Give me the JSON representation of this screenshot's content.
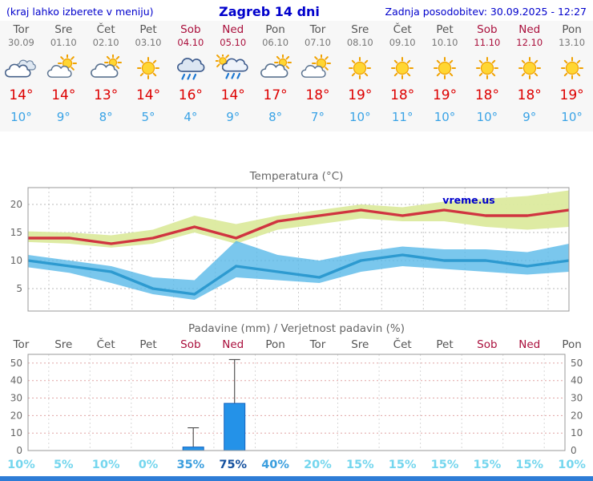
{
  "header": {
    "menu_hint": "(kraj lahko izberete v meniju)",
    "title": "Zagreb 14 dni",
    "updated": "Zadnja posodobitev: 30.09.2025 - 12:27"
  },
  "days": [
    {
      "name": "Tor",
      "date": "30.09",
      "weekend": false,
      "icon": "cloudy",
      "max": "14",
      "min": "10"
    },
    {
      "name": "Sre",
      "date": "01.10",
      "weekend": false,
      "icon": "partly-sunny",
      "max": "14",
      "min": "9"
    },
    {
      "name": "Čet",
      "date": "02.10",
      "weekend": false,
      "icon": "cloudy-sun",
      "max": "13",
      "min": "8"
    },
    {
      "name": "Pet",
      "date": "03.10",
      "weekend": false,
      "icon": "sunny",
      "max": "14",
      "min": "5"
    },
    {
      "name": "Sob",
      "date": "04.10",
      "weekend": true,
      "icon": "rain",
      "max": "16",
      "min": "4"
    },
    {
      "name": "Ned",
      "date": "05.10",
      "weekend": true,
      "icon": "sun-rain",
      "max": "14",
      "min": "9"
    },
    {
      "name": "Pon",
      "date": "06.10",
      "weekend": false,
      "icon": "cloudy-sun",
      "max": "17",
      "min": "8"
    },
    {
      "name": "Tor",
      "date": "07.10",
      "weekend": false,
      "icon": "partly-sunny",
      "max": "18",
      "min": "7"
    },
    {
      "name": "Sre",
      "date": "08.10",
      "weekend": false,
      "icon": "sunny",
      "max": "19",
      "min": "10"
    },
    {
      "name": "Čet",
      "date": "09.10",
      "weekend": false,
      "icon": "sunny",
      "max": "18",
      "min": "11"
    },
    {
      "name": "Pet",
      "date": "10.10",
      "weekend": false,
      "icon": "sunny",
      "max": "19",
      "min": "10"
    },
    {
      "name": "Sob",
      "date": "11.10",
      "weekend": true,
      "icon": "sunny",
      "max": "18",
      "min": "10"
    },
    {
      "name": "Ned",
      "date": "12.10",
      "weekend": true,
      "icon": "sunny",
      "max": "18",
      "min": "9"
    },
    {
      "name": "Pon",
      "date": "13.10",
      "weekend": false,
      "icon": "sunny",
      "max": "19",
      "min": "10"
    }
  ],
  "chart_data": [
    {
      "type": "line",
      "title": "Temperatura (°C)",
      "watermark": "vreme.us",
      "x_labels": [
        "Tor 30.09",
        "Sre 01.10",
        "Čet 02.10",
        "Pet 03.10",
        "Sob 04.10",
        "Ned 05.10",
        "Pon 06.10",
        "Tor 07.10",
        "Sre 08.10",
        "Čet 09.10",
        "Pet 10.10",
        "Sob 11.10",
        "Ned 12.10",
        "Pon 13.10"
      ],
      "series": [
        {
          "name": "max-temp",
          "values": [
            14,
            14,
            13,
            14,
            16,
            14,
            17,
            18,
            19,
            18,
            19,
            18,
            18,
            19
          ]
        },
        {
          "name": "min-temp",
          "values": [
            10,
            9,
            8,
            5,
            4,
            9,
            8,
            7,
            10,
            11,
            10,
            10,
            9,
            10
          ]
        }
      ],
      "bands": [
        {
          "name": "max-range",
          "upper": [
            15.2,
            15,
            14.5,
            15.5,
            18,
            16.5,
            18,
            19,
            20,
            19.5,
            20.5,
            21,
            21.5,
            22.5
          ],
          "lower": [
            13.3,
            13,
            12.3,
            13,
            15,
            13,
            15.5,
            16.5,
            17.5,
            17,
            17,
            16,
            15.5,
            16
          ]
        },
        {
          "name": "min-range",
          "upper": [
            11,
            10,
            9,
            7,
            6.5,
            13.5,
            11,
            10,
            11.5,
            12.5,
            12,
            12,
            11.5,
            13
          ],
          "lower": [
            8.8,
            7.8,
            6,
            4,
            3,
            7,
            6.5,
            6,
            8,
            9,
            8.5,
            8,
            7.5,
            8
          ]
        }
      ],
      "ylim": [
        1,
        23
      ],
      "yticks": [
        5,
        10,
        15,
        20
      ],
      "grid": true,
      "legend": "none"
    },
    {
      "type": "bar",
      "title": "Padavine (mm) / Verjetnost padavin (%)",
      "categories": [
        "Tor",
        "Sre",
        "Čet",
        "Pet",
        "Sob",
        "Ned",
        "Pon",
        "Tor",
        "Sre",
        "Čet",
        "Pet",
        "Sob",
        "Ned",
        "Pon"
      ],
      "values": [
        0,
        0,
        0,
        0,
        2,
        27,
        0,
        0,
        0,
        0,
        0,
        0,
        0,
        0
      ],
      "whisker_max": [
        0,
        0,
        0,
        0,
        13,
        52,
        0,
        0,
        0,
        0,
        0,
        0,
        0,
        0
      ],
      "probabilities_pct": [
        10,
        5,
        10,
        0,
        35,
        75,
        40,
        20,
        15,
        15,
        15,
        15,
        15,
        10
      ],
      "ylim": [
        0,
        55
      ],
      "yticks": [
        0,
        10,
        20,
        30,
        40,
        50
      ],
      "grid": true,
      "legend": "none"
    }
  ],
  "colors": {
    "header_blue": "#0000cc",
    "weekday": "#555555",
    "weekend": "#aa0f3c",
    "temp_max": "#dd0000",
    "temp_min": "#3aa3e6",
    "max_line": "#d03440",
    "max_band": "#dcea9e",
    "min_line": "#2d9ad0",
    "min_band": "#59b9e8",
    "bar_fill": "#2492e8",
    "bar_edge": "#1565c0",
    "prob_low": "#74d6ee",
    "prob_mid": "#3a9ede",
    "prob_high": "#14509e",
    "watermark": "#0000cc",
    "bottom_bar": "#2e7cd6"
  }
}
